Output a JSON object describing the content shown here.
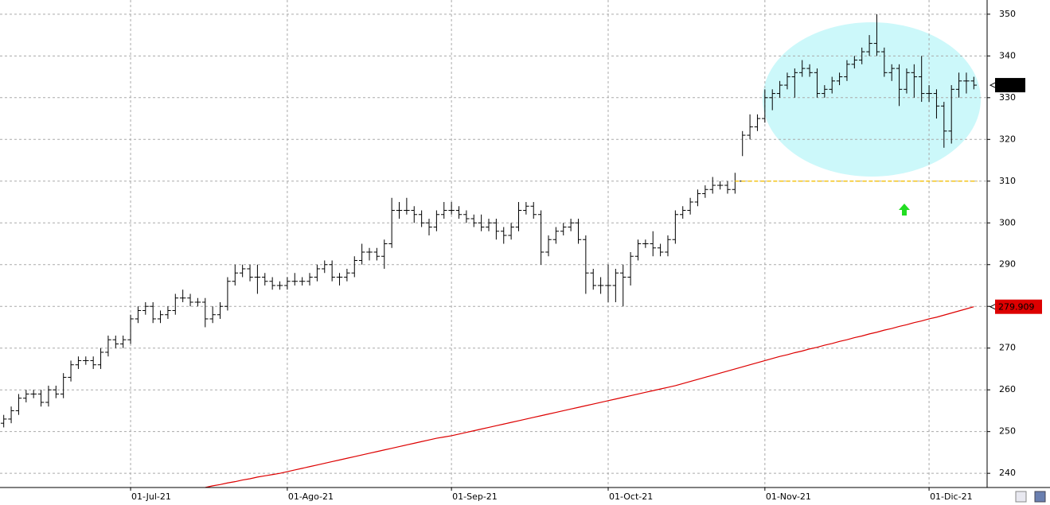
{
  "chart_data": {
    "type": "ohlc",
    "categories": [
      null,
      null,
      null,
      null,
      null,
      null,
      null,
      null,
      null,
      null,
      null,
      null,
      null,
      null,
      null,
      null,
      null,
      "01-Jul-21",
      null,
      null,
      null,
      null,
      null,
      null,
      null,
      null,
      null,
      null,
      null,
      null,
      null,
      null,
      null,
      null,
      null,
      null,
      null,
      null,
      "01-Ago-21",
      null,
      null,
      null,
      null,
      null,
      null,
      null,
      null,
      null,
      null,
      null,
      null,
      null,
      null,
      null,
      null,
      null,
      null,
      null,
      null,
      null,
      "01-Sep-21",
      null,
      null,
      null,
      null,
      null,
      null,
      null,
      null,
      null,
      null,
      null,
      null,
      null,
      null,
      null,
      null,
      null,
      null,
      null,
      null,
      "01-Oct-21",
      null,
      null,
      null,
      null,
      null,
      null,
      null,
      null,
      null,
      null,
      null,
      null,
      null,
      null,
      null,
      null,
      null,
      null,
      null,
      null,
      "01-Nov-21",
      null,
      null,
      null,
      null,
      null,
      null,
      null,
      null,
      null,
      null,
      null,
      null,
      null,
      null,
      null,
      null,
      null,
      null,
      null,
      null,
      null,
      "01-Dic-21",
      null,
      null,
      null,
      null,
      null,
      null
    ],
    "ohlc": {
      "color": "#000000",
      "open": [
        252,
        253,
        255,
        258,
        259,
        259,
        257,
        260,
        259,
        263,
        266,
        267,
        267,
        266,
        269,
        272,
        271,
        272,
        277,
        279,
        280,
        277,
        278,
        279,
        282,
        282,
        281,
        281,
        277,
        278,
        280,
        286,
        288,
        289,
        287,
        287,
        286,
        285,
        285,
        286,
        286,
        286,
        287,
        289,
        290,
        287,
        287,
        288,
        291,
        293,
        293,
        292,
        295,
        303,
        303,
        303,
        302,
        300,
        299,
        302,
        303,
        303,
        302,
        301,
        300,
        299,
        300,
        298,
        297,
        299,
        303,
        304,
        302,
        293,
        296,
        298,
        299,
        300,
        296,
        288,
        285,
        285,
        285,
        288,
        287,
        292,
        295,
        295,
        294,
        293,
        296,
        302,
        303,
        305,
        307,
        308,
        309,
        309,
        308,
        310,
        321,
        323,
        325,
        330,
        331,
        333,
        335,
        336,
        337,
        336,
        331,
        332,
        334,
        335,
        338,
        339,
        341,
        343,
        341,
        336,
        337,
        332,
        336,
        335,
        331,
        331,
        328,
        322,
        332,
        334,
        334
      ],
      "high": [
        254,
        256,
        259,
        260,
        260,
        260,
        261,
        261,
        264,
        267,
        268,
        268,
        268,
        270,
        273,
        273,
        273,
        278,
        280,
        281,
        281,
        279,
        280,
        283,
        284,
        283,
        282,
        282,
        280,
        281,
        287,
        290,
        290,
        290,
        290,
        288,
        287,
        286,
        287,
        288,
        287,
        288,
        290,
        291,
        291,
        288,
        289,
        292,
        295,
        294,
        294,
        296,
        306,
        305,
        306,
        304,
        303,
        301,
        303,
        305,
        305,
        304,
        303,
        302,
        302,
        301,
        301,
        299,
        300,
        305,
        305,
        305,
        303,
        297,
        299,
        300,
        301,
        301,
        297,
        289,
        287,
        290,
        289,
        290,
        293,
        296,
        296,
        298,
        295,
        297,
        303,
        304,
        306,
        308,
        309,
        311,
        310,
        310,
        312,
        322,
        326,
        326,
        332,
        332,
        334,
        336,
        337,
        339,
        338,
        337,
        333,
        335,
        336,
        339,
        340,
        342,
        345,
        350,
        342,
        338,
        338,
        337,
        338,
        340,
        333,
        332,
        329,
        333,
        336,
        336,
        335
      ],
      "low": [
        251,
        252,
        254,
        257,
        258,
        256,
        256,
        258,
        258,
        262,
        265,
        266,
        265,
        265,
        268,
        270,
        270,
        271,
        276,
        278,
        276,
        276,
        277,
        278,
        281,
        280,
        280,
        275,
        276,
        277,
        279,
        285,
        287,
        286,
        283,
        285,
        284,
        284,
        284,
        285,
        285,
        285,
        286,
        288,
        286,
        285,
        286,
        287,
        290,
        291,
        291,
        289,
        294,
        301,
        302,
        300,
        299,
        297,
        298,
        301,
        302,
        301,
        300,
        299,
        298,
        298,
        296,
        295,
        296,
        298,
        302,
        301,
        290,
        292,
        295,
        297,
        298,
        295,
        283,
        284,
        283,
        281,
        281,
        280,
        285,
        291,
        294,
        292,
        292,
        292,
        295,
        301,
        302,
        304,
        306,
        307,
        308,
        307,
        307,
        316,
        320,
        322,
        324,
        327,
        330,
        332,
        330,
        335,
        335,
        330,
        330,
        331,
        333,
        334,
        337,
        338,
        340,
        340,
        335,
        334,
        328,
        331,
        330,
        329,
        329,
        325,
        318,
        319,
        330,
        331,
        332
      ],
      "close": [
        253,
        255,
        258,
        259,
        259,
        257,
        260,
        259,
        263,
        266,
        267,
        267,
        266,
        269,
        272,
        271,
        272,
        277,
        279,
        280,
        277,
        278,
        279,
        282,
        282,
        281,
        281,
        277,
        278,
        280,
        286,
        288,
        289,
        287,
        287,
        286,
        285,
        285,
        286,
        286,
        286,
        287,
        289,
        290,
        287,
        287,
        288,
        291,
        293,
        293,
        292,
        295,
        303,
        303,
        303,
        302,
        300,
        299,
        302,
        303,
        303,
        302,
        301,
        300,
        299,
        300,
        298,
        297,
        299,
        303,
        304,
        302,
        293,
        296,
        298,
        299,
        300,
        296,
        288,
        285,
        285,
        285,
        288,
        287,
        292,
        295,
        295,
        294,
        293,
        296,
        302,
        303,
        305,
        307,
        308,
        309,
        309,
        308,
        310,
        321,
        323,
        325,
        330,
        331,
        333,
        335,
        336,
        337,
        336,
        331,
        332,
        334,
        335,
        338,
        339,
        341,
        343,
        341,
        336,
        337,
        332,
        336,
        335,
        331,
        331,
        328,
        322,
        332,
        334,
        334,
        333
      ]
    },
    "moving_average": {
      "color": "#dd0000",
      "values": [
        null,
        null,
        null,
        null,
        null,
        null,
        null,
        null,
        null,
        null,
        null,
        null,
        null,
        null,
        null,
        null,
        null,
        null,
        null,
        null,
        null,
        null,
        null,
        null,
        null,
        null,
        null,
        236.6,
        237.0,
        237.3,
        237.7,
        238.0,
        238.4,
        238.7,
        239.1,
        239.4,
        239.7,
        240.0,
        240.4,
        240.8,
        241.2,
        241.6,
        242.0,
        242.4,
        242.8,
        243.2,
        243.6,
        244.0,
        244.4,
        244.8,
        245.2,
        245.6,
        246.0,
        246.4,
        246.8,
        247.2,
        247.6,
        248.0,
        248.4,
        248.7,
        249.0,
        249.4,
        249.8,
        250.2,
        250.6,
        251.0,
        251.4,
        251.8,
        252.2,
        252.6,
        253.0,
        253.4,
        253.8,
        254.2,
        254.6,
        255.0,
        255.4,
        255.8,
        256.2,
        256.6,
        257.0,
        257.4,
        257.8,
        258.2,
        258.6,
        259.0,
        259.4,
        259.8,
        260.2,
        260.6,
        261.0,
        261.5,
        262.0,
        262.5,
        263.0,
        263.5,
        264.0,
        264.5,
        265.0,
        265.5,
        266.0,
        266.5,
        267.0,
        267.5,
        268.0,
        268.4,
        268.9,
        269.3,
        269.8,
        270.2,
        270.7,
        271.1,
        271.6,
        272.0,
        272.5,
        272.9,
        273.4,
        273.8,
        274.3,
        274.7,
        275.2,
        275.6,
        276.1,
        276.5,
        277.0,
        277.4,
        277.9,
        278.4,
        278.9,
        279.4,
        279.909
      ]
    },
    "support_line": {
      "value": 310,
      "color": "#f5c518"
    },
    "ylim": [
      236.6,
      353.4
    ],
    "yticks": [
      240,
      250,
      260,
      270,
      280,
      290,
      300,
      310,
      320,
      330,
      340,
      350
    ],
    "grid": true
  }
}
